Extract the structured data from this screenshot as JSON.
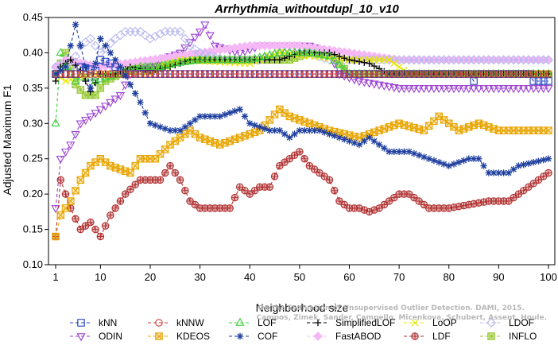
{
  "chart_data": {
    "type": "line",
    "title": "Arrhythmia_withoutdupl_10_v10",
    "xlabel": "Neighborhood size",
    "ylabel": "Adjusted Maximum F1",
    "xlim": [
      1,
      100
    ],
    "ylim": [
      0.1,
      0.45
    ],
    "xticks": [
      1,
      10,
      20,
      30,
      40,
      50,
      60,
      70,
      80,
      90,
      100
    ],
    "yticks": [
      0.1,
      0.15,
      0.2,
      0.25,
      0.3,
      0.35,
      0.4,
      0.45
    ],
    "grid": false,
    "legend_position": "bottom",
    "series": [
      {
        "name": "kNN",
        "color": "#1f3fbf",
        "dash": "4,3",
        "marker": "square",
        "knots": [
          [
            1,
            0.37
          ],
          [
            5,
            0.37
          ],
          [
            6,
            0.38
          ],
          [
            9,
            0.375
          ],
          [
            10,
            0.39
          ],
          [
            12,
            0.385
          ],
          [
            15,
            0.37
          ],
          [
            20,
            0.37
          ],
          [
            84,
            0.37
          ],
          [
            85,
            0.36
          ],
          [
            86,
            0.37
          ],
          [
            96,
            0.37
          ],
          [
            97,
            0.36
          ],
          [
            100,
            0.36
          ]
        ]
      },
      {
        "name": "kNNW",
        "color": "#d23a3a",
        "dash": "4,3",
        "marker": "circle",
        "knots": [
          [
            1,
            0.37
          ],
          [
            100,
            0.37
          ]
        ]
      },
      {
        "name": "LOF",
        "color": "#3ecb3e",
        "dash": "4,3",
        "marker": "triangle",
        "knots": [
          [
            1,
            0.3
          ],
          [
            2,
            0.4
          ],
          [
            3,
            0.38
          ],
          [
            5,
            0.36
          ],
          [
            7,
            0.37
          ],
          [
            9,
            0.36
          ],
          [
            11,
            0.365
          ],
          [
            14,
            0.37
          ],
          [
            18,
            0.38
          ],
          [
            22,
            0.38
          ],
          [
            25,
            0.385
          ],
          [
            30,
            0.39
          ],
          [
            40,
            0.39
          ],
          [
            46,
            0.4
          ],
          [
            52,
            0.4
          ],
          [
            56,
            0.395
          ],
          [
            60,
            0.37
          ],
          [
            100,
            0.37
          ]
        ]
      },
      {
        "name": "SimplifiedLOF",
        "color": "#000000",
        "dash": "4,3",
        "marker": "plus",
        "knots": [
          [
            1,
            0.36
          ],
          [
            2,
            0.38
          ],
          [
            4,
            0.39
          ],
          [
            6,
            0.375
          ],
          [
            8,
            0.345
          ],
          [
            10,
            0.37
          ],
          [
            13,
            0.37
          ],
          [
            16,
            0.38
          ],
          [
            20,
            0.375
          ],
          [
            24,
            0.38
          ],
          [
            28,
            0.39
          ],
          [
            35,
            0.39
          ],
          [
            40,
            0.39
          ],
          [
            46,
            0.39
          ],
          [
            50,
            0.4
          ],
          [
            56,
            0.4
          ],
          [
            60,
            0.39
          ],
          [
            64,
            0.385
          ],
          [
            68,
            0.37
          ],
          [
            100,
            0.37
          ]
        ]
      },
      {
        "name": "LoOP",
        "color": "#e8e800",
        "dash": "4,3",
        "marker": "cross",
        "knots": [
          [
            1,
            0.37
          ],
          [
            3,
            0.36
          ],
          [
            8,
            0.37
          ],
          [
            20,
            0.37
          ],
          [
            26,
            0.39
          ],
          [
            40,
            0.385
          ],
          [
            46,
            0.4
          ],
          [
            60,
            0.39
          ],
          [
            68,
            0.39
          ],
          [
            70,
            0.38
          ],
          [
            72,
            0.37
          ],
          [
            100,
            0.37
          ]
        ]
      },
      {
        "name": "LDOF",
        "color": "#b7b7ee",
        "dash": "4,3",
        "marker": "diamond",
        "knots": [
          [
            1,
            0.38
          ],
          [
            4,
            0.38
          ],
          [
            6,
            0.41
          ],
          [
            8,
            0.42
          ],
          [
            10,
            0.4
          ],
          [
            13,
            0.42
          ],
          [
            15,
            0.43
          ],
          [
            18,
            0.43
          ],
          [
            20,
            0.42
          ],
          [
            23,
            0.43
          ],
          [
            26,
            0.43
          ],
          [
            28,
            0.41
          ],
          [
            30,
            0.4
          ],
          [
            35,
            0.39
          ],
          [
            38,
            0.39
          ],
          [
            42,
            0.39
          ],
          [
            46,
            0.4
          ],
          [
            52,
            0.4
          ],
          [
            56,
            0.39
          ],
          [
            70,
            0.39
          ],
          [
            100,
            0.39
          ]
        ]
      },
      {
        "name": "ODIN",
        "color": "#9a3fd0",
        "dash": "4,3",
        "marker": "triangle-down",
        "knots": [
          [
            1,
            0.18
          ],
          [
            2,
            0.25
          ],
          [
            4,
            0.27
          ],
          [
            6,
            0.3
          ],
          [
            8,
            0.31
          ],
          [
            10,
            0.32
          ],
          [
            12,
            0.33
          ],
          [
            14,
            0.34
          ],
          [
            16,
            0.37
          ],
          [
            20,
            0.38
          ],
          [
            22,
            0.39
          ],
          [
            26,
            0.4
          ],
          [
            30,
            0.43
          ],
          [
            31,
            0.44
          ],
          [
            33,
            0.41
          ],
          [
            38,
            0.4
          ],
          [
            42,
            0.41
          ],
          [
            48,
            0.41
          ],
          [
            52,
            0.41
          ],
          [
            56,
            0.4
          ],
          [
            58,
            0.37
          ],
          [
            62,
            0.36
          ],
          [
            66,
            0.355
          ],
          [
            70,
            0.35
          ],
          [
            100,
            0.35
          ]
        ]
      },
      {
        "name": "KDEOS",
        "color": "#e8a500",
        "dash": "4,3",
        "marker": "square-x",
        "knots": [
          [
            1,
            0.14
          ],
          [
            2,
            0.17
          ],
          [
            4,
            0.19
          ],
          [
            6,
            0.22
          ],
          [
            8,
            0.24
          ],
          [
            10,
            0.25
          ],
          [
            12,
            0.24
          ],
          [
            16,
            0.23
          ],
          [
            18,
            0.25
          ],
          [
            21,
            0.25
          ],
          [
            24,
            0.27
          ],
          [
            28,
            0.29
          ],
          [
            30,
            0.28
          ],
          [
            34,
            0.27
          ],
          [
            38,
            0.28
          ],
          [
            42,
            0.29
          ],
          [
            46,
            0.32
          ],
          [
            48,
            0.31
          ],
          [
            52,
            0.3
          ],
          [
            56,
            0.29
          ],
          [
            62,
            0.28
          ],
          [
            66,
            0.29
          ],
          [
            70,
            0.3
          ],
          [
            75,
            0.29
          ],
          [
            78,
            0.31
          ],
          [
            82,
            0.29
          ],
          [
            86,
            0.3
          ],
          [
            90,
            0.29
          ],
          [
            94,
            0.29
          ],
          [
            100,
            0.29
          ]
        ]
      },
      {
        "name": "COF",
        "color": "#1f3f9f",
        "dash": "4,3",
        "marker": "asterisk",
        "knots": [
          [
            1,
            0.37
          ],
          [
            3,
            0.38
          ],
          [
            5,
            0.44
          ],
          [
            8,
            0.35
          ],
          [
            10,
            0.42
          ],
          [
            14,
            0.38
          ],
          [
            18,
            0.33
          ],
          [
            20,
            0.3
          ],
          [
            24,
            0.29
          ],
          [
            26,
            0.29
          ],
          [
            30,
            0.31
          ],
          [
            34,
            0.31
          ],
          [
            38,
            0.32
          ],
          [
            40,
            0.3
          ],
          [
            44,
            0.29
          ],
          [
            46,
            0.29
          ],
          [
            48,
            0.28
          ],
          [
            50,
            0.29
          ],
          [
            54,
            0.29
          ],
          [
            58,
            0.28
          ],
          [
            62,
            0.27
          ],
          [
            64,
            0.28
          ],
          [
            68,
            0.26
          ],
          [
            72,
            0.26
          ],
          [
            76,
            0.25
          ],
          [
            80,
            0.24
          ],
          [
            84,
            0.25
          ],
          [
            86,
            0.25
          ],
          [
            88,
            0.23
          ],
          [
            92,
            0.23
          ],
          [
            94,
            0.24
          ],
          [
            100,
            0.25
          ]
        ]
      },
      {
        "name": "FastABOD",
        "color": "#f5b8f5",
        "dash": "4,3",
        "marker": "diamond-filled",
        "knots": [
          [
            1,
            0.38
          ],
          [
            3,
            0.39
          ],
          [
            10,
            0.38
          ],
          [
            15,
            0.385
          ],
          [
            20,
            0.39
          ],
          [
            30,
            0.4
          ],
          [
            40,
            0.41
          ],
          [
            50,
            0.41
          ],
          [
            60,
            0.4
          ],
          [
            70,
            0.39
          ],
          [
            80,
            0.39
          ],
          [
            100,
            0.39
          ]
        ]
      },
      {
        "name": "LDF",
        "color": "#b03030",
        "dash": "4,3",
        "marker": "circle-plus",
        "knots": [
          [
            1,
            0.14
          ],
          [
            2,
            0.22
          ],
          [
            4,
            0.18
          ],
          [
            6,
            0.15
          ],
          [
            8,
            0.16
          ],
          [
            10,
            0.14
          ],
          [
            12,
            0.17
          ],
          [
            15,
            0.2
          ],
          [
            18,
            0.22
          ],
          [
            20,
            0.22
          ],
          [
            22,
            0.22
          ],
          [
            24,
            0.24
          ],
          [
            26,
            0.22
          ],
          [
            28,
            0.19
          ],
          [
            30,
            0.18
          ],
          [
            36,
            0.18
          ],
          [
            38,
            0.21
          ],
          [
            40,
            0.2
          ],
          [
            42,
            0.21
          ],
          [
            44,
            0.21
          ],
          [
            46,
            0.24
          ],
          [
            48,
            0.25
          ],
          [
            50,
            0.26
          ],
          [
            52,
            0.24
          ],
          [
            54,
            0.23
          ],
          [
            56,
            0.22
          ],
          [
            58,
            0.19
          ],
          [
            60,
            0.18
          ],
          [
            62,
            0.18
          ],
          [
            64,
            0.175
          ],
          [
            66,
            0.18
          ],
          [
            68,
            0.19
          ],
          [
            70,
            0.2
          ],
          [
            72,
            0.2
          ],
          [
            74,
            0.19
          ],
          [
            76,
            0.18
          ],
          [
            80,
            0.18
          ],
          [
            84,
            0.185
          ],
          [
            88,
            0.19
          ],
          [
            92,
            0.19
          ],
          [
            96,
            0.21
          ],
          [
            100,
            0.23
          ]
        ]
      },
      {
        "name": "INFLO",
        "color": "#96c832",
        "dash": "4,3",
        "marker": "square-star",
        "knots": [
          [
            1,
            0.37
          ],
          [
            3,
            0.4
          ],
          [
            5,
            0.355
          ],
          [
            7,
            0.34
          ],
          [
            9,
            0.34
          ],
          [
            11,
            0.36
          ],
          [
            14,
            0.37
          ],
          [
            18,
            0.38
          ],
          [
            22,
            0.38
          ],
          [
            26,
            0.39
          ],
          [
            32,
            0.39
          ],
          [
            40,
            0.39
          ],
          [
            48,
            0.39
          ],
          [
            52,
            0.4
          ],
          [
            56,
            0.4
          ],
          [
            60,
            0.37
          ],
          [
            100,
            0.37
          ]
        ]
      }
    ]
  },
  "watermark": {
    "line1": "Campos, Zimek, Sander, Campello, Micenkova, Schubert, Assent, Houle.",
    "line2": "On the Evaluation of Unsupervised Outlier Detection. DAMI, 2015."
  }
}
